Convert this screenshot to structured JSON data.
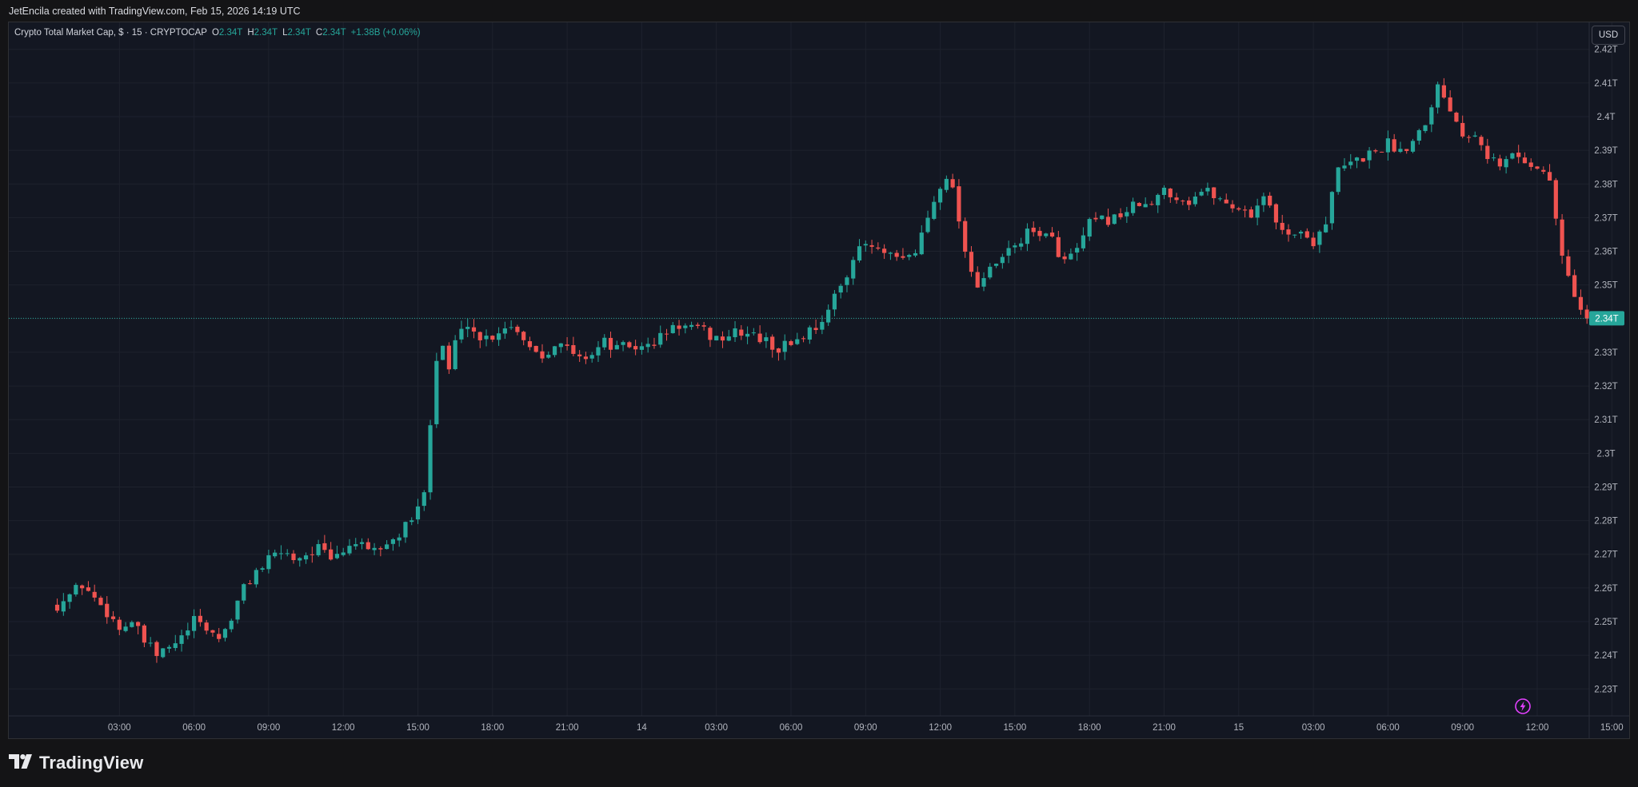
{
  "header": {
    "credit": "JetEncila created with TradingView.com, Feb 15, 2026 14:19 UTC"
  },
  "legend": {
    "symbol": "Crypto Total Market Cap, $ · 15 · CRYPTOCAP",
    "open_label": "O",
    "open": "2.34T",
    "high_label": "H",
    "high": "2.34T",
    "low_label": "L",
    "low": "2.34T",
    "close_label": "C",
    "close": "2.34T",
    "change": "+1.38B (+0.06%)"
  },
  "currency": "USD",
  "brand": {
    "name": "TradingView"
  },
  "icons": {
    "logo": "tradingview-logo-icon",
    "bolt": "lightning-icon"
  },
  "colors": {
    "up": "#26a69a",
    "down": "#ef5350",
    "background": "#131722",
    "grid": "#1e222d",
    "price_line": "#26a69a",
    "bolt": "#e040fb"
  },
  "chart_data": {
    "type": "candlestick",
    "timeframe": "15",
    "y_unit": "T USD",
    "ylim": [
      2.222,
      2.428
    ],
    "y_ticks": [
      2.42,
      2.41,
      2.4,
      2.39,
      2.38,
      2.37,
      2.36,
      2.35,
      2.34,
      2.33,
      2.32,
      2.31,
      2.3,
      2.29,
      2.28,
      2.27,
      2.26,
      2.25,
      2.24,
      2.23
    ],
    "y_tick_labels": [
      "2.42T",
      "2.41T",
      "2.4T",
      "2.39T",
      "2.38T",
      "2.37T",
      "2.36T",
      "2.35T",
      "2.34T",
      "2.33T",
      "2.32T",
      "2.31T",
      "2.3T",
      "2.29T",
      "2.28T",
      "2.27T",
      "2.26T",
      "2.25T",
      "2.24T",
      "2.23T"
    ],
    "x_start": "Feb 13 00:30",
    "x_ticks": [
      {
        "label": "03:00",
        "h": 3
      },
      {
        "label": "06:00",
        "h": 6
      },
      {
        "label": "09:00",
        "h": 9
      },
      {
        "label": "12:00",
        "h": 12
      },
      {
        "label": "15:00",
        "h": 15
      },
      {
        "label": "18:00",
        "h": 18
      },
      {
        "label": "21:00",
        "h": 21
      },
      {
        "label": "14",
        "h": 24
      },
      {
        "label": "03:00",
        "h": 27
      },
      {
        "label": "06:00",
        "h": 30
      },
      {
        "label": "09:00",
        "h": 33
      },
      {
        "label": "12:00",
        "h": 36
      },
      {
        "label": "15:00",
        "h": 39
      },
      {
        "label": "18:00",
        "h": 42
      },
      {
        "label": "21:00",
        "h": 45
      },
      {
        "label": "15",
        "h": 48
      },
      {
        "label": "03:00",
        "h": 51
      },
      {
        "label": "06:00",
        "h": 54
      },
      {
        "label": "09:00",
        "h": 57
      },
      {
        "label": "12:00",
        "h": 60
      },
      {
        "label": "15:00",
        "h": 63
      }
    ],
    "last_price_label": "2.34T",
    "last_price": 2.3401,
    "close_path": [
      [
        0.5,
        2.255
      ],
      [
        1.0,
        2.258
      ],
      [
        1.5,
        2.261
      ],
      [
        2.0,
        2.257
      ],
      [
        2.5,
        2.253
      ],
      [
        3.0,
        2.248
      ],
      [
        3.5,
        2.25
      ],
      [
        4.0,
        2.244
      ],
      [
        4.5,
        2.24
      ],
      [
        5.0,
        2.242
      ],
      [
        5.5,
        2.245
      ],
      [
        6.0,
        2.25
      ],
      [
        6.5,
        2.248
      ],
      [
        7.0,
        2.245
      ],
      [
        7.5,
        2.251
      ],
      [
        8.0,
        2.26
      ],
      [
        8.5,
        2.265
      ],
      [
        9.0,
        2.268
      ],
      [
        9.5,
        2.271
      ],
      [
        10.0,
        2.269
      ],
      [
        10.5,
        2.27
      ],
      [
        11.0,
        2.272
      ],
      [
        11.5,
        2.268
      ],
      [
        12.0,
        2.271
      ],
      [
        12.5,
        2.274
      ],
      [
        13.0,
        2.27
      ],
      [
        13.5,
        2.272
      ],
      [
        14.0,
        2.274
      ],
      [
        14.5,
        2.278
      ],
      [
        15.0,
        2.283
      ],
      [
        15.25,
        2.29
      ],
      [
        15.5,
        2.31
      ],
      [
        15.75,
        2.328
      ],
      [
        16.0,
        2.332
      ],
      [
        16.25,
        2.325
      ],
      [
        16.5,
        2.333
      ],
      [
        17.0,
        2.339
      ],
      [
        17.5,
        2.334
      ],
      [
        18.0,
        2.335
      ],
      [
        18.5,
        2.338
      ],
      [
        19.0,
        2.337
      ],
      [
        19.5,
        2.332
      ],
      [
        20.0,
        2.329
      ],
      [
        20.5,
        2.333
      ],
      [
        21.0,
        2.331
      ],
      [
        21.5,
        2.328
      ],
      [
        22.0,
        2.33
      ],
      [
        22.5,
        2.333
      ],
      [
        23.0,
        2.331
      ],
      [
        23.5,
        2.332
      ],
      [
        24.0,
        2.331
      ],
      [
        24.5,
        2.333
      ],
      [
        25.0,
        2.336
      ],
      [
        25.5,
        2.338
      ],
      [
        26.0,
        2.337
      ],
      [
        26.5,
        2.336
      ],
      [
        27.0,
        2.334
      ],
      [
        27.5,
        2.335
      ],
      [
        28.0,
        2.336
      ],
      [
        28.5,
        2.335
      ],
      [
        29.0,
        2.333
      ],
      [
        29.5,
        2.331
      ],
      [
        30.0,
        2.333
      ],
      [
        30.5,
        2.335
      ],
      [
        31.0,
        2.338
      ],
      [
        31.5,
        2.342
      ],
      [
        32.0,
        2.35
      ],
      [
        32.5,
        2.358
      ],
      [
        33.0,
        2.362
      ],
      [
        33.5,
        2.36
      ],
      [
        34.0,
        2.358
      ],
      [
        34.5,
        2.357
      ],
      [
        35.0,
        2.36
      ],
      [
        35.5,
        2.37
      ],
      [
        36.0,
        2.38
      ],
      [
        36.25,
        2.383
      ],
      [
        36.5,
        2.378
      ],
      [
        36.75,
        2.37
      ],
      [
        37.0,
        2.36
      ],
      [
        37.5,
        2.35
      ],
      [
        38.0,
        2.354
      ],
      [
        38.5,
        2.358
      ],
      [
        39.0,
        2.362
      ],
      [
        39.5,
        2.365
      ],
      [
        40.0,
        2.366
      ],
      [
        40.5,
        2.363
      ],
      [
        41.0,
        2.357
      ],
      [
        41.5,
        2.36
      ],
      [
        42.0,
        2.368
      ],
      [
        42.5,
        2.369
      ],
      [
        43.0,
        2.37
      ],
      [
        43.5,
        2.372
      ],
      [
        44.0,
        2.374
      ],
      [
        44.5,
        2.373
      ],
      [
        45.0,
        2.379
      ],
      [
        45.5,
        2.376
      ],
      [
        46.0,
        2.375
      ],
      [
        46.5,
        2.378
      ],
      [
        47.0,
        2.377
      ],
      [
        47.5,
        2.374
      ],
      [
        48.0,
        2.373
      ],
      [
        48.5,
        2.371
      ],
      [
        49.0,
        2.377
      ],
      [
        49.5,
        2.368
      ],
      [
        50.0,
        2.366
      ],
      [
        50.5,
        2.365
      ],
      [
        51.0,
        2.363
      ],
      [
        51.5,
        2.369
      ],
      [
        52.0,
        2.384
      ],
      [
        52.5,
        2.386
      ],
      [
        53.0,
        2.388
      ],
      [
        53.5,
        2.39
      ],
      [
        54.0,
        2.392
      ],
      [
        54.5,
        2.39
      ],
      [
        55.0,
        2.393
      ],
      [
        55.5,
        2.399
      ],
      [
        56.0,
        2.409
      ],
      [
        56.5,
        2.403
      ],
      [
        57.0,
        2.395
      ],
      [
        57.5,
        2.396
      ],
      [
        58.0,
        2.389
      ],
      [
        58.5,
        2.385
      ],
      [
        59.0,
        2.389
      ],
      [
        59.5,
        2.387
      ],
      [
        60.0,
        2.385
      ],
      [
        60.5,
        2.381
      ],
      [
        60.75,
        2.37
      ],
      [
        61.0,
        2.358
      ],
      [
        61.25,
        2.352
      ],
      [
        61.5,
        2.348
      ],
      [
        61.75,
        2.342
      ],
      [
        62.0,
        2.34
      ],
      [
        62.25,
        2.3401
      ]
    ]
  }
}
